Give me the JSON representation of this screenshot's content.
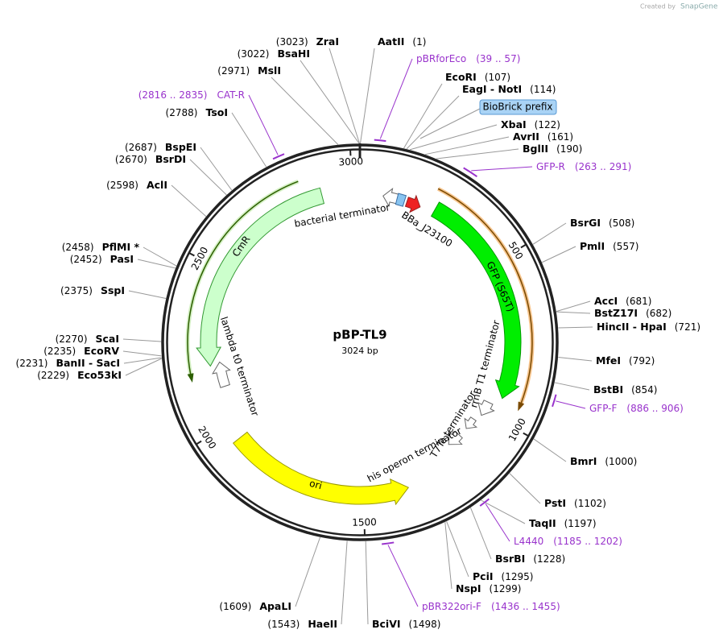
{
  "header": {
    "credit": "Created by",
    "brand": "SnapGene"
  },
  "map": {
    "name": "pBP-TL9",
    "length": "3024 bp",
    "ring_ticks": [
      500,
      1000,
      1500,
      2000,
      2500,
      3000
    ]
  },
  "badge": "BioBrick prefix",
  "sites": [
    {
      "name": "ZraI",
      "pos": "(3023)"
    },
    {
      "name": "AatII",
      "pos": "(1)"
    },
    {
      "name": "BsaHI",
      "pos": "(3022)"
    },
    {
      "name": "MslI",
      "pos": "(2971)"
    },
    {
      "name": "EcoRI",
      "pos": "(107)"
    },
    {
      "name": "EagI - NotI",
      "pos": "(114)"
    },
    {
      "name": "XbaI",
      "pos": "(122)"
    },
    {
      "name": "AvrII",
      "pos": "(161)"
    },
    {
      "name": "BglII",
      "pos": "(190)"
    },
    {
      "name": "BsrGI",
      "pos": "(508)"
    },
    {
      "name": "PmlI",
      "pos": "(557)"
    },
    {
      "name": "AccI",
      "pos": "(681)"
    },
    {
      "name": "BstZ17I",
      "pos": "(682)"
    },
    {
      "name": "HincII - HpaI",
      "pos": "(721)"
    },
    {
      "name": "MfeI",
      "pos": "(792)"
    },
    {
      "name": "BstBI",
      "pos": "(854)"
    },
    {
      "name": "BmrI",
      "pos": "(1000)"
    },
    {
      "name": "PstI",
      "pos": "(1102)"
    },
    {
      "name": "TaqII",
      "pos": "(1197)"
    },
    {
      "name": "BsrBI",
      "pos": "(1228)"
    },
    {
      "name": "PciI",
      "pos": "(1295)"
    },
    {
      "name": "NspI",
      "pos": "(1299)"
    },
    {
      "name": "BciVI",
      "pos": "(1498)"
    },
    {
      "name": "HaeII",
      "pos": "(1543)"
    },
    {
      "name": "ApaLI",
      "pos": "(1609)"
    },
    {
      "name": "TsoI",
      "pos": "(2788)"
    },
    {
      "name": "BspEI",
      "pos": "(2687)"
    },
    {
      "name": "BsrDI",
      "pos": "(2670)"
    },
    {
      "name": "AclI",
      "pos": "(2598)"
    },
    {
      "name": "PflMI *",
      "pos": "(2458)"
    },
    {
      "name": "PasI",
      "pos": "(2452)"
    },
    {
      "name": "SspI",
      "pos": "(2375)"
    },
    {
      "name": "ScaI",
      "pos": "(2270)"
    },
    {
      "name": "EcoRV",
      "pos": "(2235)"
    },
    {
      "name": "BanII - SacI",
      "pos": "(2231)"
    },
    {
      "name": "Eco53kI",
      "pos": "(2229)"
    }
  ],
  "primers": [
    {
      "name": "pBRforEco",
      "range": "(39 .. 57)"
    },
    {
      "name": "GFP-R",
      "range": "(263 .. 291)"
    },
    {
      "name": "GFP-F",
      "range": "(886 .. 906)"
    },
    {
      "name": "L4440",
      "range": "(1185 .. 1202)"
    },
    {
      "name": "pBR322ori-F",
      "range": "(1436 .. 1455)"
    },
    {
      "name": "CAT-R",
      "range": "(2816 .. 2835)"
    }
  ],
  "features": [
    {
      "label": "CmR"
    },
    {
      "label": "GFP (S65T)"
    },
    {
      "label": "ori"
    },
    {
      "label": "bacterial terminator"
    },
    {
      "label": "BBa_J23100"
    },
    {
      "label": "rrnB T1 terminator"
    },
    {
      "label": "T7Te terminator"
    },
    {
      "label": "his operon terminator"
    },
    {
      "label": "lambda t0 terminator"
    }
  ]
}
